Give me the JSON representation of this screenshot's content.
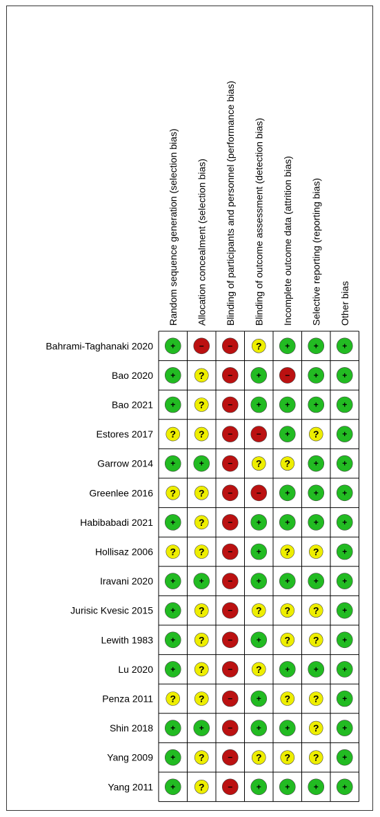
{
  "chart_data": {
    "type": "table",
    "columns": [
      "Random sequence generation (selection bias)",
      "Allocation concealment (selection bias)",
      "Blinding of participants and personnel (performance bias)",
      "Blinding of outcome assessment (detection bias)",
      "Incomplete outcome data (attrition bias)",
      "Selective reporting (reporting bias)",
      "Other bias"
    ],
    "rows": [
      "Bahrami-Taghanaki 2020",
      "Bao 2020",
      "Bao 2021",
      "Estores 2017",
      "Garrow 2014",
      "Greenlee 2016",
      "Habibabadi 2021",
      "Hollisaz 2006",
      "Iravani 2020",
      "Jurisic Kvesic 2015",
      "Lewith 1983",
      "Lu 2020",
      "Penza 2011",
      "Shin 2018",
      "Yang 2009",
      "Yang 2011"
    ],
    "values": [
      [
        "low",
        "high",
        "high",
        "unclear",
        "low",
        "low",
        "low"
      ],
      [
        "low",
        "unclear",
        "high",
        "low",
        "high",
        "low",
        "low"
      ],
      [
        "low",
        "unclear",
        "high",
        "low",
        "low",
        "low",
        "low"
      ],
      [
        "unclear",
        "unclear",
        "high",
        "high",
        "low",
        "unclear",
        "low"
      ],
      [
        "low",
        "low",
        "high",
        "unclear",
        "unclear",
        "low",
        "low"
      ],
      [
        "unclear",
        "unclear",
        "high",
        "high",
        "low",
        "low",
        "low"
      ],
      [
        "low",
        "unclear",
        "high",
        "low",
        "low",
        "low",
        "low"
      ],
      [
        "unclear",
        "unclear",
        "high",
        "low",
        "unclear",
        "unclear",
        "low"
      ],
      [
        "low",
        "low",
        "high",
        "low",
        "low",
        "low",
        "low"
      ],
      [
        "low",
        "unclear",
        "high",
        "unclear",
        "unclear",
        "unclear",
        "low"
      ],
      [
        "low",
        "unclear",
        "high",
        "low",
        "unclear",
        "unclear",
        "low"
      ],
      [
        "low",
        "unclear",
        "high",
        "unclear",
        "low",
        "low",
        "low"
      ],
      [
        "unclear",
        "unclear",
        "high",
        "low",
        "unclear",
        "unclear",
        "low"
      ],
      [
        "low",
        "low",
        "high",
        "low",
        "low",
        "unclear",
        "low"
      ],
      [
        "low",
        "unclear",
        "high",
        "unclear",
        "unclear",
        "unclear",
        "low"
      ],
      [
        "low",
        "unclear",
        "high",
        "low",
        "low",
        "low",
        "low"
      ]
    ],
    "legend": {
      "low": {
        "symbol": "+",
        "color": "#22bb22"
      },
      "unclear": {
        "symbol": "?",
        "color": "#eeee00"
      },
      "high": {
        "symbol": "−",
        "color": "#bb1111"
      }
    }
  }
}
